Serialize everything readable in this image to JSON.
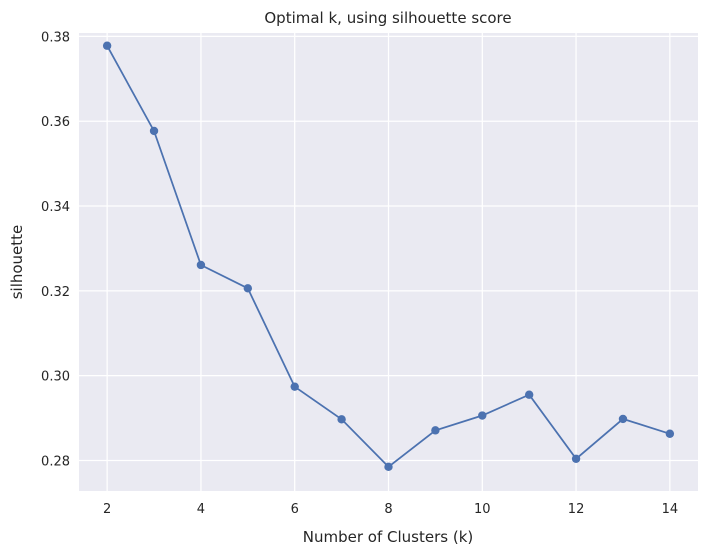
{
  "chart_data": {
    "type": "line",
    "title": "Optimal k, using silhouette score",
    "xlabel": "Number of Clusters (k)",
    "ylabel": "silhouette",
    "xlim": [
      1.4,
      14.6
    ],
    "ylim": [
      0.2728,
      0.3808
    ],
    "x_ticks": [
      2,
      4,
      6,
      8,
      10,
      12,
      14
    ],
    "x_tick_labels": [
      "2",
      "4",
      "6",
      "8",
      "10",
      "12",
      "14"
    ],
    "y_ticks": [
      0.28,
      0.3,
      0.32,
      0.34,
      0.36,
      0.38
    ],
    "y_tick_labels": [
      "0.28",
      "0.30",
      "0.32",
      "0.34",
      "0.36",
      "0.38"
    ],
    "grid": true,
    "series": [
      {
        "color": "#4c72b0",
        "marker": "circle",
        "points": [
          {
            "x": 2,
            "y": 0.3778
          },
          {
            "x": 3,
            "y": 0.3577
          },
          {
            "x": 4,
            "y": 0.3261
          },
          {
            "x": 5,
            "y": 0.3206
          },
          {
            "x": 6,
            "y": 0.2974
          },
          {
            "x": 7,
            "y": 0.2897
          },
          {
            "x": 8,
            "y": 0.2785
          },
          {
            "x": 9,
            "y": 0.2871
          },
          {
            "x": 10,
            "y": 0.2906
          },
          {
            "x": 11,
            "y": 0.2955
          },
          {
            "x": 12,
            "y": 0.2804
          },
          {
            "x": 13,
            "y": 0.2898
          },
          {
            "x": 14,
            "y": 0.2863
          }
        ]
      }
    ]
  },
  "style": {
    "plot_background": "#eaeaf2",
    "grid_color": "#ffffff",
    "text_color": "#262626"
  }
}
